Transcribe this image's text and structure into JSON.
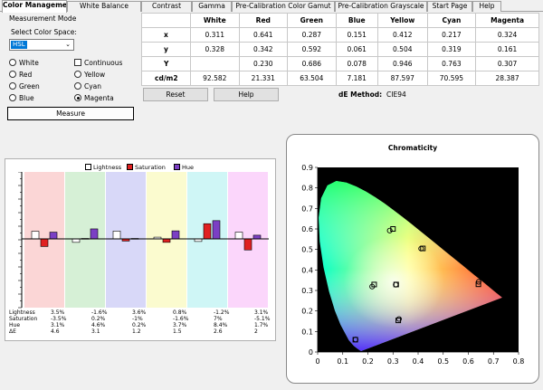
{
  "tabs": [
    "Color Management",
    "White Balance",
    "Contrast",
    "Gamma",
    "Pre-Calibration Color Gamut",
    "Pre-Calibration Grayscale",
    "Start Page",
    "Help"
  ],
  "panel": {
    "title": "Measurement Mode",
    "color_space_label": "Select Color Space:",
    "color_space_value": "HSL",
    "options": {
      "white": "White",
      "red": "Red",
      "green": "Green",
      "blue": "Blue",
      "continuous": "Continuous",
      "yellow": "Yellow",
      "cyan": "Cyan",
      "magenta": "Magenta"
    },
    "selected": "Magenta",
    "measure_label": "Measure"
  },
  "table": {
    "columns": [
      "White",
      "Red",
      "Green",
      "Blue",
      "Yellow",
      "Cyan",
      "Magenta"
    ],
    "rows": [
      {
        "label": "x",
        "values": [
          "0.311",
          "0.641",
          "0.287",
          "0.151",
          "0.412",
          "0.217",
          "0.324"
        ]
      },
      {
        "label": "y",
        "values": [
          "0.328",
          "0.342",
          "0.592",
          "0.061",
          "0.504",
          "0.319",
          "0.161"
        ]
      },
      {
        "label": "Y",
        "values": [
          "",
          "0.230",
          "0.686",
          "0.078",
          "0.946",
          "0.763",
          "0.307"
        ]
      },
      {
        "label": "cd/m2",
        "values": [
          "92.582",
          "21.331",
          "63.504",
          "7.181",
          "87.597",
          "70.595",
          "28.387"
        ]
      }
    ]
  },
  "buttons": {
    "reset": "Reset",
    "help": "Help"
  },
  "de": {
    "label": "dE Method:",
    "value": "CIE94"
  },
  "colors": {
    "lightness": "#ffffff",
    "saturation": "#e02020",
    "hue": "#7b3fc4",
    "bg_red": "#fbd6d6",
    "bg_green": "#d6f0d6",
    "bg_blue": "#d8d8f8",
    "bg_yellow": "#fbfbcf",
    "bg_cyan": "#cff6f6",
    "bg_magenta": "#fbd6fb"
  },
  "bars": {
    "legend": [
      "Lightness",
      "Saturation",
      "Hue"
    ],
    "row_labels": [
      "Lightness",
      "Saturation",
      "Hue",
      "ΔE"
    ],
    "groups": [
      {
        "lightness": "3.5%",
        "saturation": "-3.5%",
        "hue": "3.1%",
        "de": "4.6"
      },
      {
        "lightness": "-1.6%",
        "saturation": "0.2%",
        "hue": "4.6%",
        "de": "3.1"
      },
      {
        "lightness": "3.6%",
        "saturation": "-1%",
        "hue": "0.2%",
        "de": "1.2"
      },
      {
        "lightness": "0.8%",
        "saturation": "-1.6%",
        "hue": "3.7%",
        "de": "1.5"
      },
      {
        "lightness": "-1.2%",
        "saturation": "7%",
        "hue": "8.4%",
        "de": "2.6"
      },
      {
        "lightness": "3.1%",
        "saturation": "-5.1%",
        "hue": "1.7%",
        "de": "2"
      }
    ]
  },
  "chromaticity": {
    "title": "Chromaticity",
    "xlim": [
      0,
      0.8
    ],
    "ylim": [
      0,
      0.9
    ],
    "x_ticks": [
      "0",
      "0.1",
      "0.2",
      "0.3",
      "0.4",
      "0.5",
      "0.6",
      "0.7",
      "0.8"
    ],
    "y_ticks": [
      "0",
      "0.1",
      "0.2",
      "0.3",
      "0.4",
      "0.5",
      "0.6",
      "0.7",
      "0.8",
      "0.9"
    ],
    "targets": [
      {
        "x": 0.64,
        "y": 0.33,
        "color": "#ff0000"
      },
      {
        "x": 0.3,
        "y": 0.6,
        "color": "#00ff00"
      },
      {
        "x": 0.15,
        "y": 0.06,
        "color": "#0000ff"
      },
      {
        "x": 0.419,
        "y": 0.505,
        "color": "#ffff00"
      },
      {
        "x": 0.225,
        "y": 0.329,
        "color": "#00ffff"
      },
      {
        "x": 0.321,
        "y": 0.154,
        "color": "#ff00ff"
      },
      {
        "x": 0.3127,
        "y": 0.329,
        "color": "#ffffff"
      }
    ],
    "measured": [
      {
        "x": 0.641,
        "y": 0.342
      },
      {
        "x": 0.287,
        "y": 0.592
      },
      {
        "x": 0.151,
        "y": 0.061
      },
      {
        "x": 0.412,
        "y": 0.504
      },
      {
        "x": 0.217,
        "y": 0.319
      },
      {
        "x": 0.324,
        "y": 0.161
      },
      {
        "x": 0.311,
        "y": 0.328
      }
    ]
  }
}
